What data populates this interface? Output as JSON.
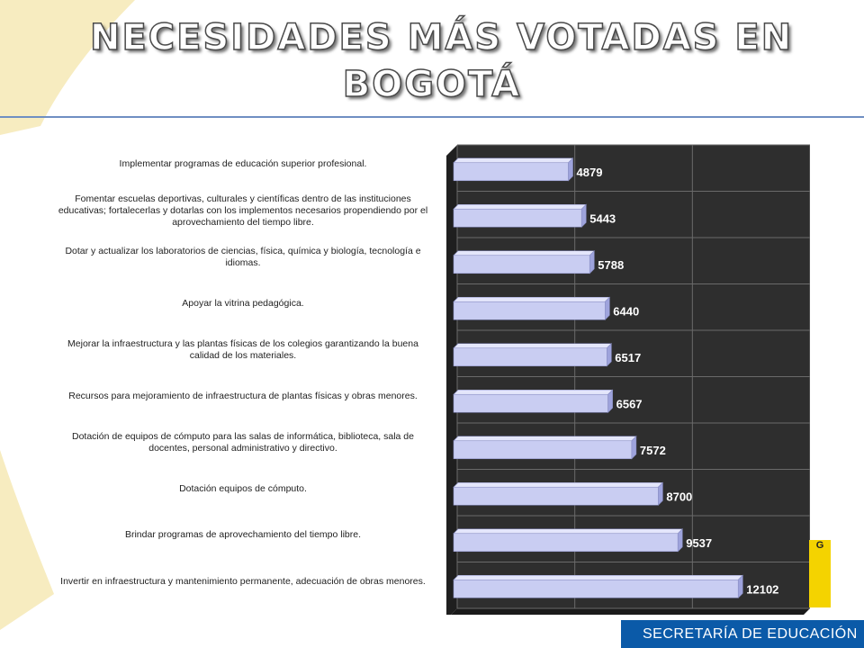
{
  "title_line1": "NECESIDADES MÁS VOTADAS EN",
  "title_line2": "BOGOTÁ",
  "footer_label": "SECRETARÍA DE EDUCACIÓN",
  "logo_text": "G",
  "colors": {
    "title_fill": "#ffffff",
    "plot_bg": "#2e2e2e",
    "bar_fill": "#c9cdf2",
    "rule": "#6f8fc2",
    "footer_bg": "#0b5aa8",
    "accent_yellow": "#f4d300"
  },
  "chart_data": {
    "type": "bar",
    "orientation": "horizontal",
    "style": "3d",
    "categories": [
      "Implementar programas de educación superior profesional.",
      "Fomentar escuelas deportivas, culturales y científicas dentro de las instituciones educativas; fortalecerlas y dotarlas con los implementos necesarios propendiendo por el aprovechamiento del tiempo libre.",
      "Dotar y actualizar los laboratorios de ciencias, física, química y biología, tecnología e idiomas.",
      "Apoyar la vitrina pedagógica.",
      "Mejorar la infraestructura y las plantas físicas de los colegios garantizando la buena calidad de los materiales.",
      "Recursos para mejoramiento de infraestructura de plantas físicas y obras menores.",
      "Dotación de equipos de cómputo para las salas de informática, biblioteca, sala de docentes, personal administrativo y directivo.",
      "Dotación equipos de cómputo.",
      "Brindar programas de aprovechamiento del tiempo libre.",
      "Invertir en infraestructura y mantenimiento permanente, adecuación de obras menores."
    ],
    "values": [
      4879,
      5443,
      5788,
      6440,
      6517,
      6567,
      7572,
      8700,
      9537,
      12102
    ],
    "data_labels": [
      "4879",
      "5443",
      "5788",
      "6440",
      "6517",
      "6567",
      "7572",
      "8700",
      "9537",
      "12102"
    ],
    "xlim": [
      0,
      15000
    ],
    "grid": true,
    "legend": "none"
  }
}
